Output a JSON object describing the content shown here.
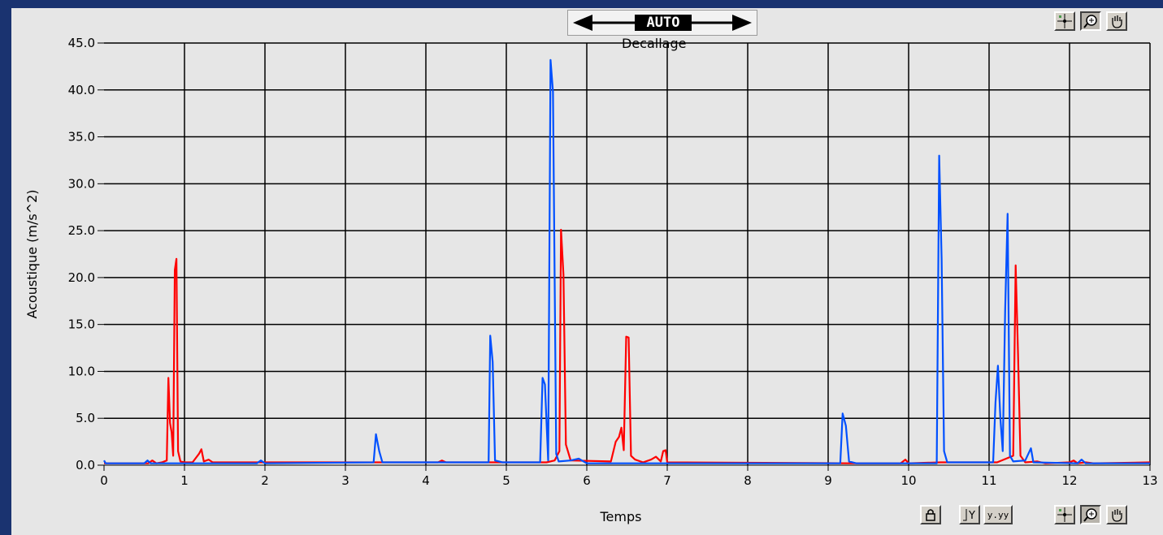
{
  "offset_control": {
    "value": "AUTO",
    "label": "Decallage"
  },
  "graph_palette": {
    "top": [
      "cursor-tool",
      "zoom-tool",
      "pan-tool"
    ],
    "bottom_scale": [
      "lock",
      "autoscale-y",
      "format-y"
    ],
    "bottom_tools": [
      "cursor-tool",
      "zoom-tool",
      "pan-tool"
    ],
    "format_label": "y.yy"
  },
  "colors": {
    "series_red": "#ff0000",
    "series_blue": "#0050ff",
    "plot_bg": "#e6e6e6",
    "window_bg": "#1a3370"
  },
  "chart_data": {
    "type": "line",
    "title": "",
    "xlabel": "Temps",
    "ylabel": "Acoustique (m/s^2)",
    "xlim": [
      0,
      13
    ],
    "ylim": [
      0,
      45
    ],
    "grid": true,
    "xticks": [
      0,
      1,
      2,
      3,
      4,
      5,
      6,
      7,
      8,
      9,
      10,
      11,
      12,
      13
    ],
    "xtick_labels": [
      "0",
      "1",
      "2",
      "3",
      "4",
      "5",
      "6",
      "7",
      "8",
      "9",
      "10",
      "11",
      "12",
      "13"
    ],
    "yticks": [
      0,
      5,
      10,
      15,
      20,
      25,
      30,
      35,
      40,
      45
    ],
    "ytick_labels": [
      "0.0",
      "5.0",
      "10.0",
      "15.0",
      "20.0",
      "25.0",
      "30.0",
      "35.0",
      "40.0",
      "45.0"
    ],
    "series": [
      {
        "color": "#ff0000",
        "points": [
          [
            0,
            0.2
          ],
          [
            0.55,
            0.2
          ],
          [
            0.6,
            0.5
          ],
          [
            0.65,
            0.2
          ],
          [
            0.72,
            0.3
          ],
          [
            0.78,
            0.5
          ],
          [
            0.8,
            9.3
          ],
          [
            0.82,
            4.5
          ],
          [
            0.84,
            3.5
          ],
          [
            0.86,
            1.0
          ],
          [
            0.88,
            20.8
          ],
          [
            0.9,
            22.0
          ],
          [
            0.92,
            1.5
          ],
          [
            0.95,
            0.4
          ],
          [
            1.0,
            0.3
          ],
          [
            1.1,
            0.3
          ],
          [
            1.18,
            1.2
          ],
          [
            1.21,
            1.7
          ],
          [
            1.24,
            0.4
          ],
          [
            1.3,
            0.6
          ],
          [
            1.35,
            0.3
          ],
          [
            4.15,
            0.3
          ],
          [
            4.2,
            0.5
          ],
          [
            4.25,
            0.3
          ],
          [
            5.5,
            0.3
          ],
          [
            5.6,
            0.5
          ],
          [
            5.66,
            1.5
          ],
          [
            5.68,
            25.1
          ],
          [
            5.71,
            20.3
          ],
          [
            5.74,
            2.2
          ],
          [
            5.8,
            0.5
          ],
          [
            6.3,
            0.4
          ],
          [
            6.36,
            2.5
          ],
          [
            6.4,
            3.0
          ],
          [
            6.43,
            4.0
          ],
          [
            6.46,
            1.6
          ],
          [
            6.49,
            13.7
          ],
          [
            6.52,
            13.6
          ],
          [
            6.55,
            1.0
          ],
          [
            6.6,
            0.6
          ],
          [
            6.7,
            0.3
          ],
          [
            6.8,
            0.6
          ],
          [
            6.86,
            0.9
          ],
          [
            6.92,
            0.4
          ],
          [
            6.95,
            1.5
          ],
          [
            6.98,
            1.6
          ],
          [
            7.0,
            0.3
          ],
          [
            9.3,
            0.2
          ],
          [
            9.9,
            0.2
          ],
          [
            9.96,
            0.6
          ],
          [
            10.0,
            0.2
          ],
          [
            10.4,
            0.3
          ],
          [
            11.1,
            0.3
          ],
          [
            11.3,
            1.0
          ],
          [
            11.33,
            21.3
          ],
          [
            11.36,
            11.9
          ],
          [
            11.39,
            1.0
          ],
          [
            11.45,
            0.3
          ],
          [
            11.6,
            0.4
          ],
          [
            11.7,
            0.2
          ],
          [
            12.0,
            0.3
          ],
          [
            12.05,
            0.5
          ],
          [
            12.1,
            0.2
          ],
          [
            12.2,
            0.3
          ],
          [
            12.3,
            0.2
          ],
          [
            13,
            0.3
          ]
        ]
      },
      {
        "color": "#0050ff",
        "points": [
          [
            0,
            0.5
          ],
          [
            0.02,
            0.2
          ],
          [
            0.5,
            0.2
          ],
          [
            0.54,
            0.5
          ],
          [
            0.58,
            0.2
          ],
          [
            1.9,
            0.2
          ],
          [
            1.95,
            0.5
          ],
          [
            2.0,
            0.2
          ],
          [
            3.35,
            0.3
          ],
          [
            3.38,
            3.3
          ],
          [
            3.42,
            1.5
          ],
          [
            3.46,
            0.3
          ],
          [
            4.78,
            0.3
          ],
          [
            4.8,
            13.8
          ],
          [
            4.83,
            11.0
          ],
          [
            4.86,
            0.5
          ],
          [
            4.95,
            0.3
          ],
          [
            5.42,
            0.3
          ],
          [
            5.45,
            9.3
          ],
          [
            5.48,
            8.6
          ],
          [
            5.52,
            0.5
          ],
          [
            5.55,
            43.2
          ],
          [
            5.58,
            39.8
          ],
          [
            5.62,
            1.2
          ],
          [
            5.65,
            0.4
          ],
          [
            5.8,
            0.5
          ],
          [
            5.9,
            0.7
          ],
          [
            6.0,
            0.2
          ],
          [
            9.15,
            0.2
          ],
          [
            9.18,
            5.5
          ],
          [
            9.22,
            4.2
          ],
          [
            9.26,
            0.4
          ],
          [
            9.35,
            0.2
          ],
          [
            10.35,
            0.2
          ],
          [
            10.38,
            33.0
          ],
          [
            10.41,
            22.0
          ],
          [
            10.44,
            1.5
          ],
          [
            10.48,
            0.3
          ],
          [
            11.05,
            0.3
          ],
          [
            11.08,
            6.7
          ],
          [
            11.11,
            10.6
          ],
          [
            11.14,
            5.0
          ],
          [
            11.17,
            1.5
          ],
          [
            11.2,
            16.6
          ],
          [
            11.23,
            26.8
          ],
          [
            11.26,
            1.0
          ],
          [
            11.3,
            0.4
          ],
          [
            11.45,
            0.5
          ],
          [
            11.52,
            1.8
          ],
          [
            11.55,
            0.3
          ],
          [
            12.1,
            0.2
          ],
          [
            12.15,
            0.6
          ],
          [
            12.2,
            0.2
          ],
          [
            13,
            0.2
          ]
        ]
      }
    ]
  }
}
